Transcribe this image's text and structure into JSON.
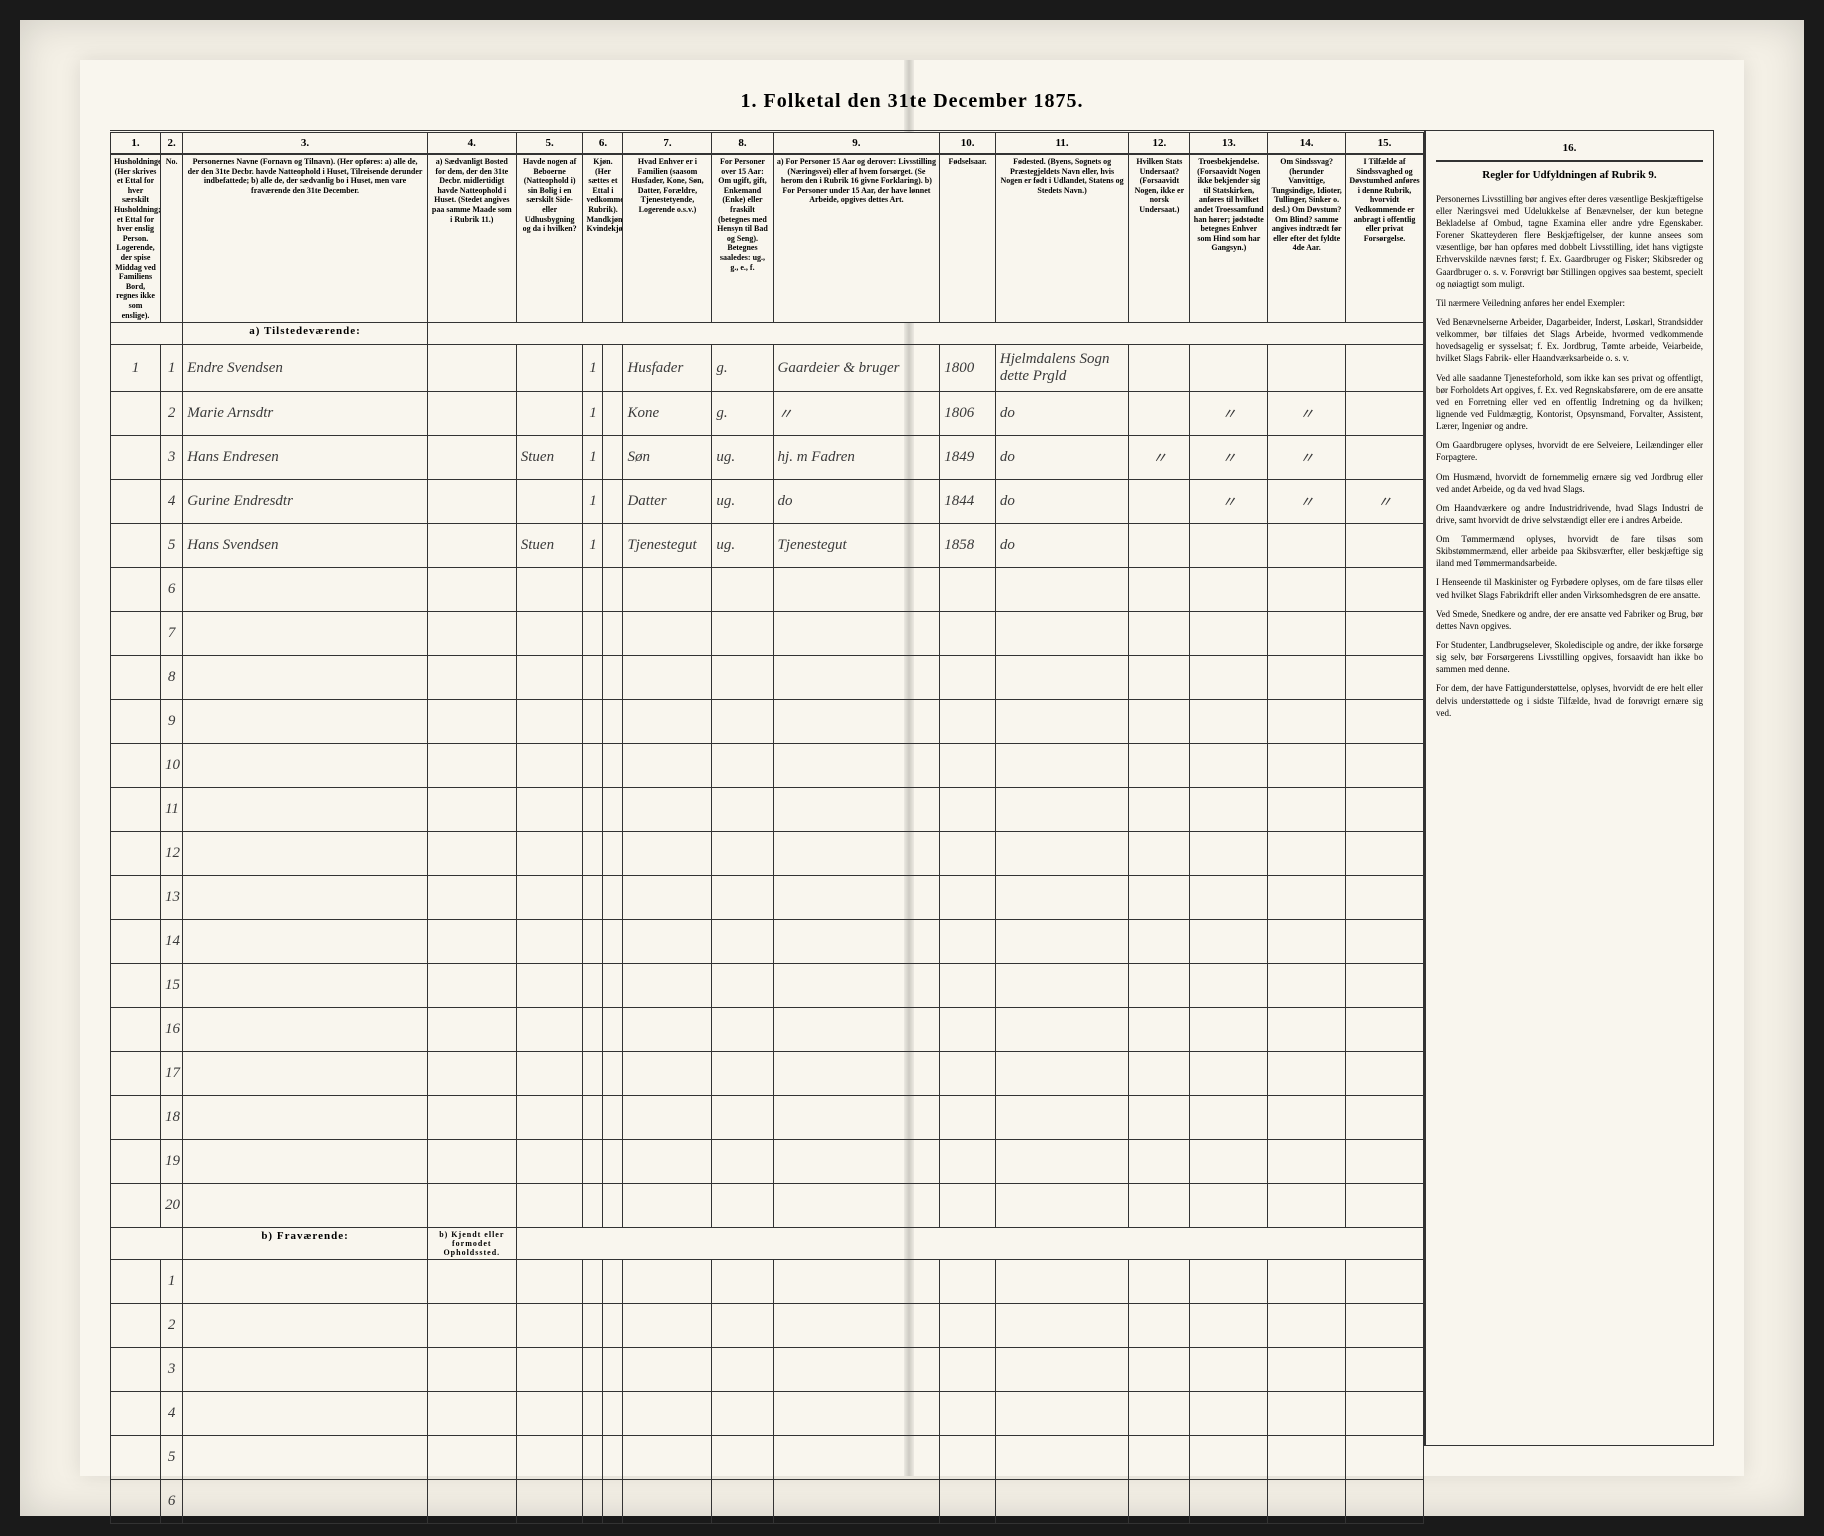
{
  "title": "1. Folketal den 31te December 1875.",
  "columns": {
    "nums": [
      "1.",
      "2.",
      "3.",
      "4.",
      "5.",
      "6.",
      "7.",
      "8.",
      "9.",
      "10.",
      "11.",
      "12.",
      "13.",
      "14.",
      "15."
    ],
    "h1": "Husholdninger. (Her skrives et Ettal for hver særskilt Husholdning; et Ettal for hver enslig Person. Logerende, der spise Middag ved Familiens Bord, regnes ikke som enslige).",
    "h2": "No.",
    "h3": "Personernes Navne (Fornavn og Tilnavn). (Her opføres: a) alle de, der den 31te Decbr. havde Natteophold i Huset, Tilreisende derunder indbefattede; b) alle de, der sædvanlig bo i Huset, men vare fraværende den 31te December.",
    "h4": "a) Sædvanligt Bosted for dem, der den 31te Decbr. midlertidigt havde Natteophold i Huset. (Stedet angives paa samme Maade som i Rubrik 11.)",
    "h5": "Havde nogen af Beboerne (Natteophold i) sin Bolig i en særskilt Side- eller Udhusbygning og da i hvilken?",
    "h6": "Kjøn. (Her sættes et Ettal i vedkommende Rubrik). Mandkjøn. Kvindekjøn.",
    "h7": "Hvad Enhver er i Familien (saasom Husfader, Kone, Søn, Datter, Forældre, Tjenestetyende, Logerende o.s.v.)",
    "h8": "For Personer over 15 Aar: Om ugift, gift, Enkemand (Enke) eller fraskilt (betegnes med Hensyn til Bad og Seng). Betegnes saaledes: ug., g., e., f.",
    "h9": "a) For Personer 15 Aar og derover: Livsstilling (Næringsvei) eller af hvem forsørget. (Se herom den i Rubrik 16 givne Forklaring). b) For Personer under 15 Aar, der have lønnet Arbeide, opgives dettes Art.",
    "h10": "Fødselsaar.",
    "h11": "Fødested. (Byens, Sognets og Præstegjeldets Navn eller, hvis Nogen er født i Udlandet, Statens og Stedets Navn.)",
    "h12": "Hvilken Stats Undersaat? (Forsaavidt Nogen, ikke er norsk Undersaat.)",
    "h13": "Troesbekjendelse. (Forsaavidt Nogen ikke bekjender sig til Statskirken, anføres til hvilket andet Troessamfund han hører; jødstødte betegnes Enhver som Hind som har Gangsyn.)",
    "h14": "Om Sindssvag? (herunder Vanvittige, Tungsindige, Idioter, Tullinger, Sinker o. desl.) Om Døvstum? Om Blind? samme angives indtrædt før eller efter det fyldte 4de Aar.",
    "h15": "I Tilfælde af Sindssvaghed og Døvstumhed anføres i denne Rubrik, hvorvidt Vedkommende er anbragt i offentlig eller privat Forsørgelse."
  },
  "section_a": "a) Tilstedeværende:",
  "section_b": "b) Fraværende:",
  "col4b": "b) Kjendt eller formodet Opholdssted.",
  "rows": [
    {
      "hh": "1",
      "n": "1",
      "name": "Endre Svendsen",
      "c4": "",
      "c5": "",
      "c6": "1",
      "c7": "Husfader",
      "c8": "g.",
      "c9": "Gaardeier & bruger",
      "c10": "1800",
      "c11": "Hjelmdalens Sogn dette Prgld",
      "c12": "",
      "c13": "",
      "c14": "",
      "c15": ""
    },
    {
      "hh": "",
      "n": "2",
      "name": "Marie Arnsdtr",
      "c4": "",
      "c5": "",
      "c6": "1",
      "c7": "Kone",
      "c8": "g.",
      "c9": "〃",
      "c10": "1806",
      "c11": "do",
      "c12": "",
      "c13": "〃",
      "c14": "〃",
      "c15": ""
    },
    {
      "hh": "",
      "n": "3",
      "name": "Hans Endresen",
      "c4": "",
      "c5": "Stuen",
      "c6": "1",
      "c7": "Søn",
      "c8": "ug.",
      "c9": "hj. m Fadren",
      "c10": "1849",
      "c11": "do",
      "c12": "〃",
      "c13": "〃",
      "c14": "〃",
      "c15": ""
    },
    {
      "hh": "",
      "n": "4",
      "name": "Gurine Endresdtr",
      "c4": "",
      "c5": "",
      "c6": "1",
      "c7": "Datter",
      "c8": "ug.",
      "c9": "do",
      "c10": "1844",
      "c11": "do",
      "c12": "",
      "c13": "〃",
      "c14": "〃",
      "c15": "〃"
    },
    {
      "hh": "",
      "n": "5",
      "name": "Hans Svendsen",
      "c4": "",
      "c5": "Stuen",
      "c6": "1",
      "c7": "Tjenestegut",
      "c8": "ug.",
      "c9": "Tjenestegut",
      "c10": "1858",
      "c11": "do",
      "c12": "",
      "c13": "",
      "c14": "",
      "c15": ""
    }
  ],
  "empty_a": [
    "6",
    "7",
    "8",
    "9",
    "10",
    "11",
    "12",
    "13",
    "14",
    "15",
    "16",
    "17",
    "18",
    "19",
    "20"
  ],
  "empty_b": [
    "1",
    "2",
    "3",
    "4",
    "5",
    "6"
  ],
  "sidebar": {
    "colnum": "16.",
    "heading": "Regler for Udfyldningen af Rubrik 9.",
    "p1": "Personernes Livsstilling bør angives efter deres væsentlige Beskjæftigelse eller Næringsvei med Udelukkelse af Benævnelser, der kun betegne Bekladelse af Ombud, tagne Examina eller andre ydre Egenskaber. Forener Skatteyderen flere Beskjæftigelser, der kunne ansees som væsentlige, bør han opføres med dobbelt Livsstilling, idet hans vigtigste Erhvervskilde nævnes først; f. Ex. Gaardbruger og Fisker; Skibsreder og Gaardbruger o. s. v. Forøvrigt bør Stillingen opgives saa bestemt, specielt og nøiagtigt som muligt.",
    "p2": "Til nærmere Veiledning anføres her endel Exempler:",
    "p3": "Ved Benævnelserne Arbeider, Dagarbeider, Inderst, Løskarl, Strandsidder velkommer, bør tilføies det Slags Arbeide, hvormed vedkommende hovedsagelig er sysselsat; f. Ex. Jordbrug, Tømte arbeide, Veiarbeide, hvilket Slags Fabrik- eller Haandværksarbeide o. s. v.",
    "p4": "Ved alle saadanne Tjenesteforhold, som ikke kan ses privat og offentligt, bør Forholdets Art opgives, f. Ex. ved Regnskabsførere, om de ere ansatte ved en Forretning eller ved en offentlig Indretning og da hvilken; lignende ved Fuldmægtig, Kontorist, Opsynsmand, Forvalter, Assistent, Lærer, Ingeniør og andre.",
    "p5": "Om Gaardbrugere oplyses, hvorvidt de ere Selveiere, Leilændinger eller Forpagtere.",
    "p6": "Om Husmænd, hvorvidt de fornemmelig ernære sig ved Jordbrug eller ved andet Arbeide, og da ved hvad Slags.",
    "p7": "Om Haandværkere og andre Industridrivende, hvad Slags Industri de drive, samt hvorvidt de drive selvstændigt eller ere i andres Arbeide.",
    "p8": "Om Tømmermænd oplyses, hvorvidt de fare tilsøs som Skibstømmermænd, eller arbeide paa Skibsværfter, eller beskjæftige sig iland med Tømmermandsarbeide.",
    "p9": "I Henseende til Maskinister og Fyrbødere oplyses, om de fare tilsøs eller ved hvilket Slags Fabrikdrift eller anden Virksomhedsgren de ere ansatte.",
    "p10": "Ved Smede, Snedkere og andre, der ere ansatte ved Fabriker og Brug, bør dettes Navn opgives.",
    "p11": "For Studenter, Landbrugs­elever, Skoledisciple og andre, der ikke forsørge sig selv, bør Forsørgerens Livsstilling opgives, forsaavidt han ikke bo sammen med denne.",
    "p12": "For dem, der have Fattig­understøttelse, oplyses, hvorvidt de ere helt eller delvis understøttede og i sidste Tilfælde, hvad de forøvrigt ernære sig ved."
  }
}
